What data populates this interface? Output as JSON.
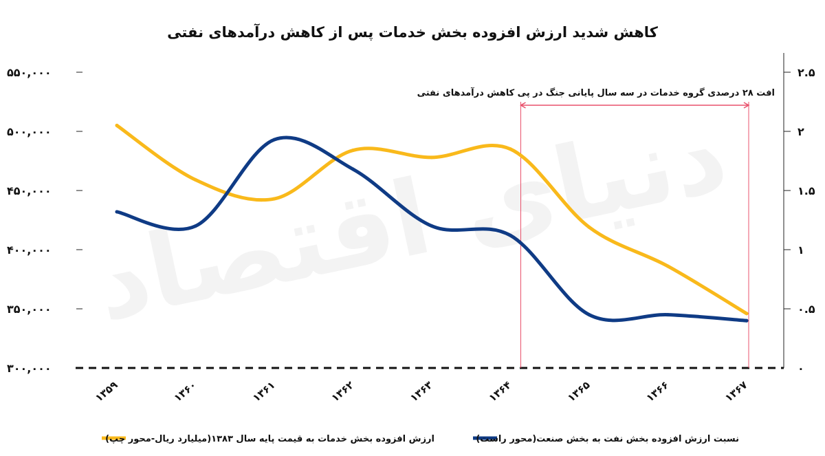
{
  "chart_data": {
    "type": "line",
    "title": "کاهش شدید ارزش افزوده بخش خدمات پس از کاهش درآمدهای نفتی",
    "categories": [
      "۱۳۵۹",
      "۱۳۶۰",
      "۱۳۶۱",
      "۱۳۶۲",
      "۱۳۶۳",
      "۱۳۶۴",
      "۱۳۶۵",
      "۱۳۶۶",
      "۱۳۶۷"
    ],
    "left_axis": {
      "ylim": [
        300000,
        550000
      ],
      "ticks": [
        300000,
        350000,
        400000,
        450000,
        500000,
        550000
      ],
      "tick_labels": [
        "۳۰۰,۰۰۰",
        "۳۵۰,۰۰۰",
        "۴۰۰,۰۰۰",
        "۴۵۰,۰۰۰",
        "۵۰۰,۰۰۰",
        "۵۵۰,۰۰۰"
      ]
    },
    "right_axis": {
      "ylim": [
        0,
        2.5
      ],
      "ticks": [
        0,
        0.5,
        1,
        1.5,
        2,
        2.5
      ],
      "tick_labels": [
        "۰",
        "۰.۵",
        "۱",
        "۱.۵",
        "۲",
        "۲.۵"
      ]
    },
    "series": [
      {
        "name": "ارزش افزوده بخش خدمات به قیمت پایه سال ۱۳۸۳(میلیارد ریال-محور چپ)",
        "axis": "left",
        "color": "#F9B91B",
        "values": [
          505000,
          459000,
          443000,
          484000,
          478000,
          485000,
          419000,
          386000,
          346000
        ]
      },
      {
        "name": "نسبت ارزش افزوده بخش نفت به بخش صنعت(محور راست)",
        "axis": "right",
        "color": "#0F3B85",
        "values": [
          1.32,
          1.2,
          1.93,
          1.68,
          1.2,
          1.12,
          0.45,
          0.45,
          0.4
        ]
      }
    ],
    "annotation": {
      "text": "افت ۲۸ درصدی گروه خدمات در سه سال پایانی جنگ در پی کاهش درآمدهای نفتی",
      "from_category": "۱۳۶۴",
      "to_category": "۱۳۶۷",
      "color": "#E8506B"
    },
    "watermark": "دنیای اقتصاد",
    "legend_position": "bottom"
  }
}
